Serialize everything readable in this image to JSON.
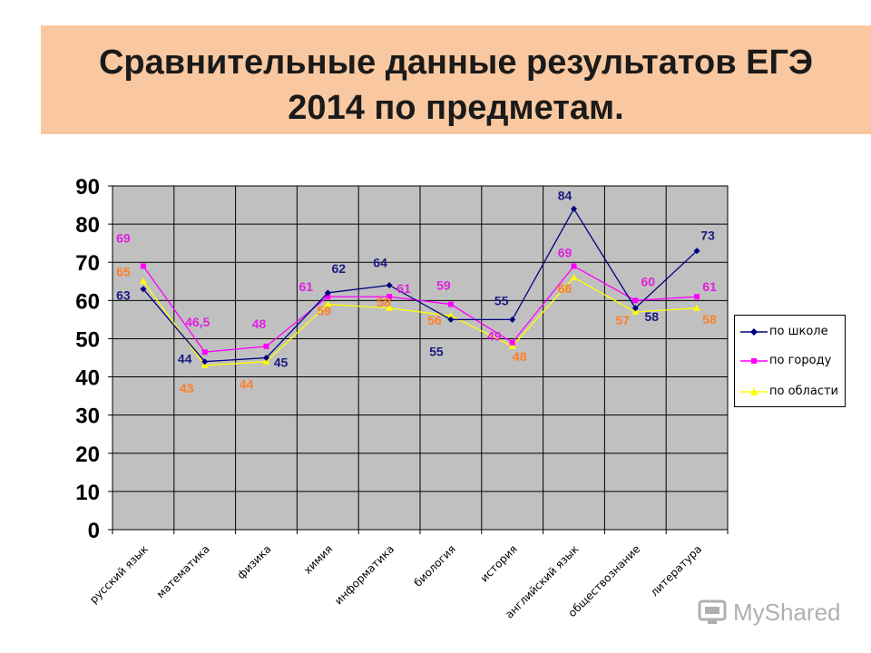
{
  "title": {
    "line1": "Сравнительные данные результатов ЕГЭ",
    "line2": "2014 по предметам."
  },
  "chart_data": {
    "type": "line",
    "categories": [
      "русский язык",
      "математика",
      "физика",
      "химия",
      "информатика",
      "биология",
      "история",
      "английский язык",
      "обществознание",
      "литература"
    ],
    "ylim": [
      0,
      90
    ],
    "yticks": [
      0,
      10,
      20,
      30,
      40,
      50,
      60,
      70,
      80,
      90
    ],
    "grid": true,
    "legend": "right",
    "series": [
      {
        "name": "по школе",
        "color": "#000080",
        "label_color": "#1a1a80",
        "values": [
          63,
          44,
          45,
          62,
          64,
          55,
          55,
          84,
          58,
          73
        ],
        "labels": [
          "63",
          "44",
          "45",
          "62",
          "64",
          "55",
          "55",
          "84",
          "58",
          "73"
        ]
      },
      {
        "name": "по городу",
        "color": "#ff00ff",
        "label_color": "#e020e0",
        "values": [
          69,
          46.5,
          48,
          61,
          61,
          59,
          49,
          69,
          60,
          61
        ],
        "labels": [
          "69",
          "46,5",
          "48",
          "61",
          "61",
          "59",
          "49",
          "69",
          "60",
          "61"
        ]
      },
      {
        "name": "по области",
        "color": "#ffff00",
        "label_color": "#ff7f27",
        "values": [
          65,
          43,
          44,
          59,
          58,
          56,
          48,
          66,
          57,
          58
        ],
        "labels": [
          "65",
          "43",
          "44",
          "59",
          "58",
          "56",
          "48",
          "66",
          "57",
          "58"
        ]
      }
    ]
  },
  "watermark": {
    "text": "MyShared"
  }
}
